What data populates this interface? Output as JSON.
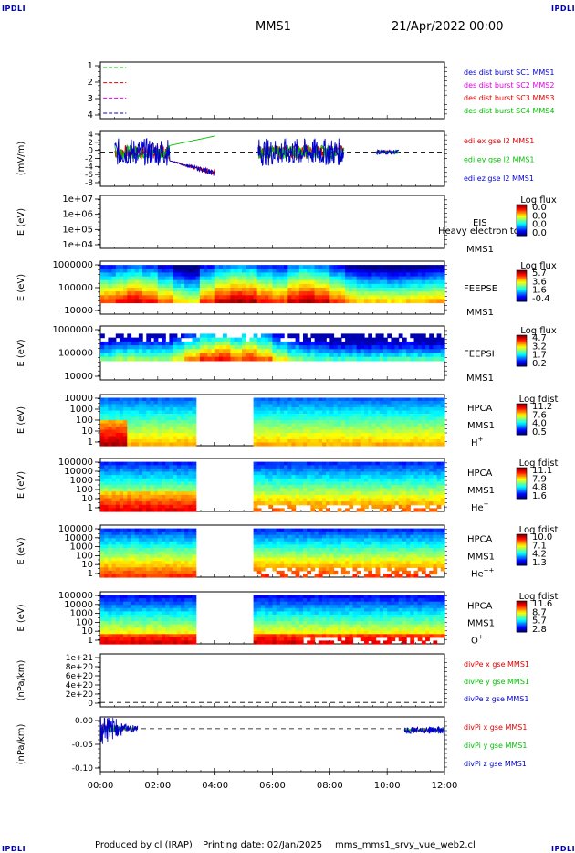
{
  "corner_tags": [
    "IPDLI",
    "IPDLI",
    "IPDLI",
    "IPDLI"
  ],
  "header": {
    "spacecraft": "MMS1",
    "date": "21/Apr/2022 00:00"
  },
  "footer": {
    "produced_by": "Produced by cl (IRAP)",
    "printing_date": "Printing date: 02/Jan/2025",
    "file_name": "mms_mms1_srvy_vue_web2.cl"
  },
  "colors": {
    "axis": "#000000",
    "corner_text": "#0000aa",
    "red": "#e00000",
    "green": "#00c000",
    "blue": "#0000cc",
    "magenta": "#e000e0",
    "dark_blue": "#000080"
  },
  "chart_data": [
    {
      "id": "burst",
      "type": "line",
      "title": "",
      "ylabel": "",
      "ylim": [
        0.5,
        4.5
      ],
      "yticks": [
        "1",
        "2",
        "3",
        "4"
      ],
      "series": [
        {
          "name": "des dist burst SC1 MMS1",
          "color": "#0000cc",
          "level": 1,
          "x": [
            0.1,
            0.9
          ]
        },
        {
          "name": "des dist burst SC2 MMS2",
          "color": "#e000e0",
          "level": 2,
          "x": [
            0.1,
            0.9
          ]
        },
        {
          "name": "des dist burst SC3 MMS3",
          "color": "#e00000",
          "level": 3,
          "x": [
            0.1,
            0.9
          ]
        },
        {
          "name": "des dist burst SC4 MMS4",
          "color": "#00c000",
          "level": 4,
          "x": [
            0.1,
            0.9
          ]
        }
      ]
    },
    {
      "id": "edi",
      "type": "line",
      "ylabel": "(mV/m)",
      "ylim": [
        -8,
        5
      ],
      "yticks": [
        "4",
        "2",
        "0",
        "-2",
        "-4",
        "-6",
        "-8"
      ],
      "reference_line": 0,
      "series": [
        {
          "name": "edi ex gse l2 MMS1",
          "color": "#e00000"
        },
        {
          "name": "edi ey gse l2 MMS1",
          "color": "#00c000"
        },
        {
          "name": "edi ez gse l2 MMS1",
          "color": "#0000cc"
        }
      ],
      "data_intervals_hours": [
        [
          0.5,
          4.0
        ],
        [
          5.5,
          8.5
        ],
        [
          9.6,
          10.4
        ]
      ]
    },
    {
      "id": "eis",
      "type": "heatmap",
      "ylabel": "E (eV)",
      "yticks": [
        "1e+07",
        "1e+06",
        "1e+05",
        "1e+04"
      ],
      "instrument": [
        "EIS",
        "MMS1"
      ],
      "overlay_text": "Heavy electron to",
      "colorbar": {
        "title": "Log flux",
        "ticks": [
          "0.0",
          "0.0",
          "0.0",
          "0.0"
        ]
      },
      "empty": true
    },
    {
      "id": "feepse",
      "type": "heatmap",
      "ylabel": "E (eV)",
      "yticks": [
        "1000000",
        "100000",
        "10000"
      ],
      "instrument": [
        "FEEPSE",
        "MMS1"
      ],
      "colorbar": {
        "title": "Log flux",
        "ticks": [
          "5.7",
          "3.6",
          "1.6",
          "-0.4"
        ]
      },
      "coverage_hours": [
        [
          0,
          12
        ]
      ],
      "low_energy_intensity": [
        0.85,
        0.9,
        0.95,
        0.9,
        0.8,
        0.7,
        0.65,
        0.85,
        0.95,
        1.0,
        0.98,
        0.9,
        0.85,
        0.95,
        1.0,
        0.95,
        0.85,
        0.75,
        0.7,
        0.7,
        0.68,
        0.7,
        0.72,
        0.75
      ]
    },
    {
      "id": "feepsi",
      "type": "heatmap",
      "ylabel": "E (eV)",
      "yticks": [
        "1000000",
        "100000",
        "10000"
      ],
      "instrument": [
        "FEEPSI",
        "MMS1"
      ],
      "colorbar": {
        "title": "Log flux",
        "ticks": [
          "4.7",
          "3.2",
          "1.7",
          "0.2"
        ]
      },
      "coverage_hours": [
        [
          0,
          12
        ]
      ],
      "low_energy_intensity": [
        0.55,
        0.6,
        0.62,
        0.6,
        0.6,
        0.68,
        0.8,
        0.9,
        0.95,
        0.85,
        0.92,
        0.85,
        0.7,
        0.6,
        0.55,
        0.52,
        0.5,
        0.5,
        0.48,
        0.5,
        0.5,
        0.52,
        0.5,
        0.5
      ]
    },
    {
      "id": "hpca_h",
      "type": "heatmap",
      "ylabel": "E (eV)",
      "yticks": [
        "10000",
        "1000",
        "100",
        "10",
        "1"
      ],
      "instrument": [
        "HPCA",
        "MMS1",
        "H+"
      ],
      "colorbar": {
        "title": "Log fdist",
        "ticks": [
          "11.2",
          "7.6",
          "4.0",
          "0.5"
        ]
      },
      "coverage_hours": [
        [
          0,
          3.3
        ],
        [
          5.3,
          12
        ]
      ]
    },
    {
      "id": "hpca_he",
      "type": "heatmap",
      "ylabel": "E (eV)",
      "yticks": [
        "100000",
        "10000",
        "1000",
        "100",
        "10",
        "1"
      ],
      "instrument": [
        "HPCA",
        "MMS1",
        "He+"
      ],
      "colorbar": {
        "title": "Log fdist",
        "ticks": [
          "11.1",
          "7.9",
          "4.8",
          "1.6"
        ]
      },
      "coverage_hours": [
        [
          0,
          3.3
        ],
        [
          5.3,
          12
        ]
      ]
    },
    {
      "id": "hpca_hepp",
      "type": "heatmap",
      "ylabel": "E (eV)",
      "yticks": [
        "100000",
        "10000",
        "1000",
        "100",
        "10",
        "1"
      ],
      "instrument": [
        "HPCA",
        "MMS1",
        "He++"
      ],
      "colorbar": {
        "title": "Log fdist",
        "ticks": [
          "10.0",
          "7.1",
          "4.2",
          "1.3"
        ]
      },
      "coverage_hours": [
        [
          0,
          3.3
        ],
        [
          5.3,
          12
        ]
      ]
    },
    {
      "id": "hpca_o",
      "type": "heatmap",
      "ylabel": "E (eV)",
      "yticks": [
        "100000",
        "10000",
        "1000",
        "100",
        "10",
        "1"
      ],
      "instrument": [
        "HPCA",
        "MMS1",
        "O+"
      ],
      "colorbar": {
        "title": "Log fdist",
        "ticks": [
          "11.6",
          "8.7",
          "5.7",
          "2.8"
        ]
      },
      "coverage_hours": [
        [
          0,
          3.3
        ],
        [
          5.3,
          12
        ]
      ]
    },
    {
      "id": "divpe",
      "type": "line",
      "ylabel": "(nPa/km)",
      "ylim": [
        -1e+20,
        1.1e+21
      ],
      "yticks": [
        "1e+21",
        "8e+20",
        "6e+20",
        "4e+20",
        "2e+20",
        "0"
      ],
      "reference_line": 0,
      "series": [
        {
          "name": "divPe x gse MMS1",
          "color": "#e00000"
        },
        {
          "name": "divPe y gse MMS1",
          "color": "#00c000"
        },
        {
          "name": "divPe z gse MMS1",
          "color": "#0000cc"
        }
      ]
    },
    {
      "id": "divpi",
      "type": "line",
      "ylabel": "(nPa/km)",
      "ylim": [
        -0.11,
        0.03
      ],
      "yticks": [
        "0.00",
        "-0.05",
        "-0.10"
      ],
      "reference_line": 0,
      "series": [
        {
          "name": "divPi x gse MMS1",
          "color": "#e00000"
        },
        {
          "name": "divPi y gse MMS1",
          "color": "#00c000"
        },
        {
          "name": "divPi z gse MMS1",
          "color": "#0000cc"
        }
      ],
      "data_intervals_hours": [
        [
          0.0,
          1.3
        ],
        [
          10.6,
          12.0
        ]
      ]
    }
  ],
  "x_axis": {
    "ticks": [
      "00:00",
      "02:00",
      "04:00",
      "06:00",
      "08:00",
      "10:00",
      "12:00"
    ],
    "range_hours": [
      0,
      12
    ]
  }
}
